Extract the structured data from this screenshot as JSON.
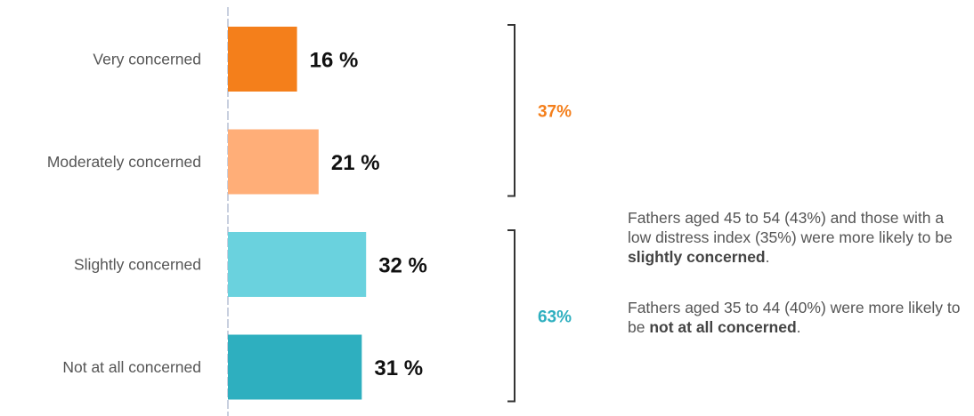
{
  "chart_data": {
    "type": "bar",
    "orientation": "horizontal",
    "title": "",
    "xlabel": "",
    "ylabel": "",
    "xlim": [
      0,
      100
    ],
    "categories": [
      "Very concerned",
      "Moderately concerned",
      "Slightly concerned",
      "Not at all concerned"
    ],
    "values": [
      16,
      21,
      32,
      31
    ],
    "value_labels": [
      "16 %",
      "21 %",
      "32 %",
      "31 %"
    ],
    "colors": [
      "#F47F1B",
      "#FFAE78",
      "#6AD2DE",
      "#2EAFBF"
    ],
    "groups": [
      {
        "label": "37%",
        "color": "#F47F1B",
        "members": [
          "Very concerned",
          "Moderately concerned"
        ]
      },
      {
        "label": "63%",
        "color": "#2EAFBF",
        "members": [
          "Slightly concerned",
          "Not at all concerned"
        ]
      }
    ]
  },
  "notes": [
    {
      "parts": [
        {
          "text": "Fathers aged 45 to 54 (43%) and those with a low distress index (35%) were more likely to be ",
          "bold": false
        },
        {
          "text": "slightly concerned",
          "bold": true
        },
        {
          "text": ".",
          "bold": false
        }
      ]
    },
    {
      "parts": [
        {
          "text": "Fathers aged 35 to 44 (40%) were more likely to be ",
          "bold": false
        },
        {
          "text": "not at all concerned",
          "bold": true
        },
        {
          "text": ".",
          "bold": false
        }
      ]
    }
  ]
}
